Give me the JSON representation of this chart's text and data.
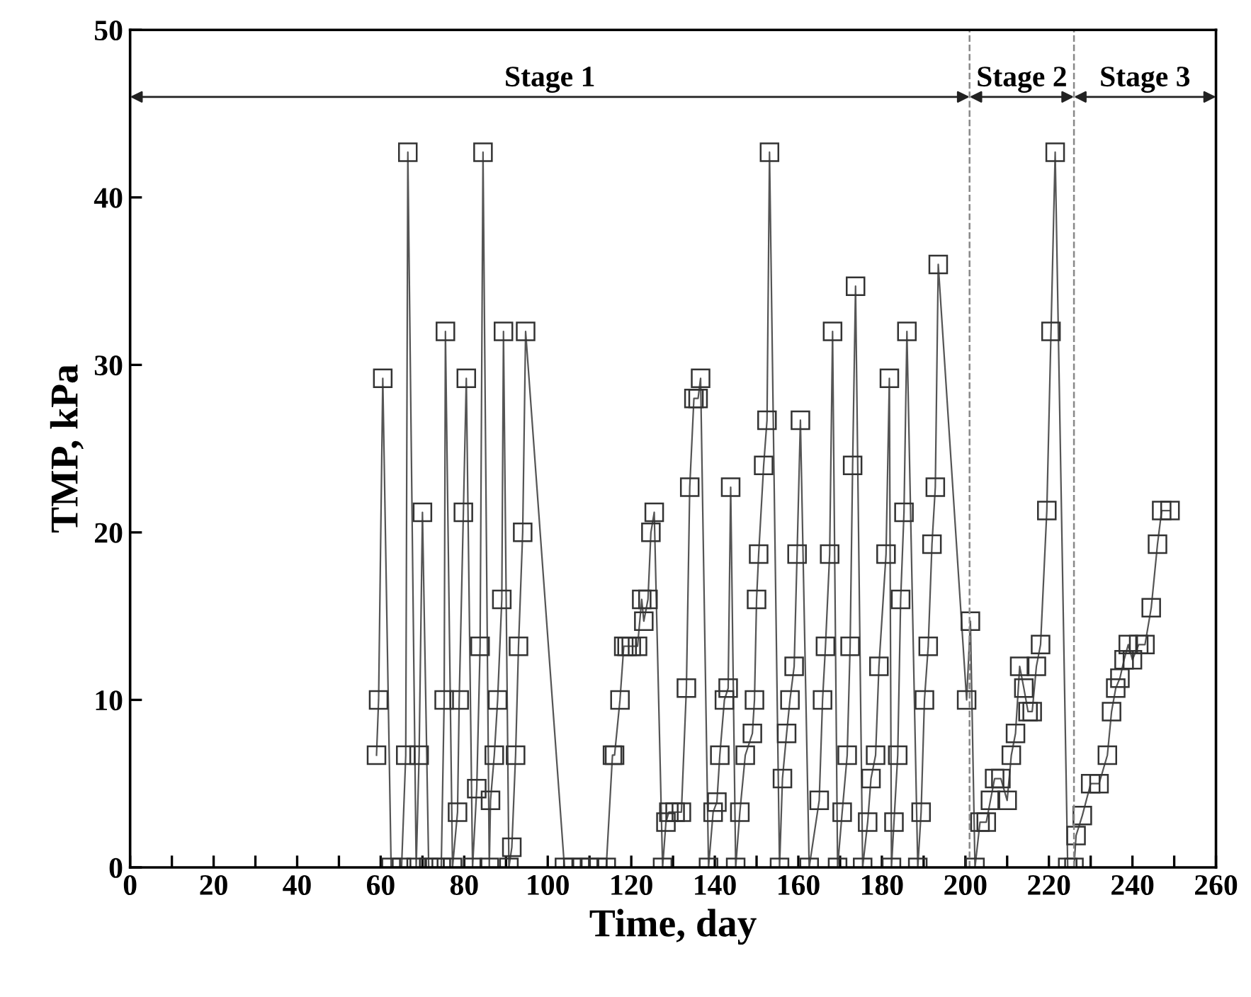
{
  "chart_data": {
    "type": "line",
    "xlabel": "Time, day",
    "ylabel": "TMP, kPa",
    "series": [
      {
        "color": "#555555",
        "marker": "square",
        "x": [
          59,
          59.5,
          60.5,
          62.5,
          65,
          66,
          66.5,
          68.5,
          69.2,
          70,
          71.5,
          73,
          74.5,
          75.2,
          75.5,
          77.2,
          78.4,
          78.8,
          79.8,
          80.5,
          82,
          83,
          83.8,
          84.5,
          86,
          86.3,
          87.2,
          88,
          89,
          89.4,
          90.7,
          91.4,
          92.3,
          93,
          94,
          94.7,
          104,
          106,
          108,
          110,
          112,
          114,
          115.5,
          116,
          117.3,
          118.2,
          119,
          120,
          121.5,
          122.5,
          123,
          124,
          124.7,
          125.5,
          127.5,
          128.3,
          129,
          130.5,
          132,
          133.2,
          134,
          135,
          136,
          136.6,
          138.5,
          139.6,
          140.5,
          141.2,
          142.3,
          143.2,
          143.8,
          145,
          146,
          147.3,
          149,
          149.5,
          150,
          150.5,
          151.7,
          152.5,
          153.1,
          155.5,
          156.2,
          157.2,
          158,
          159,
          159.7,
          160.5,
          162.6,
          165,
          165.8,
          166.5,
          167.5,
          168.2,
          169.4,
          170.5,
          171.7,
          172.4,
          173,
          173.7,
          175.4,
          176.6,
          177.4,
          178.5,
          179.3,
          181,
          181.8,
          182.3,
          182.9,
          183.8,
          184.5,
          185.3,
          186,
          188.6,
          189.4,
          190.2,
          191.1,
          192,
          192.8,
          193.5,
          200.3,
          201.2,
          202.3,
          203.5,
          205,
          206,
          207,
          208.5,
          210,
          211,
          212,
          213,
          214,
          215,
          216,
          217,
          218,
          219.5,
          220.5,
          221.5,
          224.5,
          226,
          226.5,
          228,
          230,
          232,
          234,
          235,
          236,
          237,
          238,
          239,
          240,
          241.5,
          243,
          244.5,
          246,
          247,
          249
        ],
        "values": [
          6.7,
          10,
          29.2,
          0,
          0,
          6.7,
          42.7,
          0,
          6.7,
          21.2,
          0,
          0,
          0,
          10,
          32,
          0,
          3.3,
          10,
          21.2,
          29.2,
          0,
          4.7,
          13.2,
          42.7,
          0,
          4,
          6.7,
          10,
          16,
          32,
          0,
          1.2,
          6.7,
          13.2,
          20,
          32,
          0,
          0,
          0,
          0,
          0,
          0,
          6.7,
          6.7,
          10,
          13.2,
          13.2,
          13.2,
          13.2,
          16,
          14.7,
          16,
          20,
          21.2,
          0,
          2.7,
          3.3,
          3.3,
          3.3,
          10.7,
          22.7,
          28,
          28,
          29.2,
          0,
          3.3,
          3.9,
          6.7,
          10,
          10.7,
          22.7,
          0,
          3.3,
          6.7,
          8,
          10,
          16,
          18.7,
          24,
          26.7,
          42.7,
          0,
          5.3,
          8,
          10,
          12,
          18.7,
          26.7,
          0,
          4,
          10,
          13.2,
          18.7,
          32,
          0,
          3.3,
          6.7,
          13.2,
          24,
          34.7,
          0,
          2.7,
          5.3,
          6.7,
          12,
          18.7,
          29.2,
          0,
          2.7,
          6.7,
          16,
          21.2,
          32,
          0,
          3.3,
          10,
          13.2,
          19.3,
          22.7,
          36,
          10,
          14.7,
          0,
          2.7,
          2.7,
          4,
          5.3,
          5.3,
          4,
          6.7,
          8,
          12,
          10.7,
          9.3,
          9.3,
          12,
          13.3,
          21.3,
          32,
          42.7,
          0,
          0,
          1.9,
          3.1,
          5,
          5,
          6.7,
          9.3,
          10.7,
          11.3,
          12.4,
          13.3,
          12.4,
          13.3,
          13.3,
          15.5,
          19.3,
          21.3,
          21.3
        ]
      }
    ],
    "xlim": [
      0,
      260
    ],
    "ylim": [
      0,
      50
    ],
    "xticks": [
      0,
      {
        "value": 10,
        "label": null
      },
      20,
      {
        "value": 30,
        "label": null
      },
      40,
      {
        "value": 50,
        "label": null
      },
      60,
      {
        "value": 70,
        "label": null
      },
      80,
      {
        "value": 90,
        "label": null
      },
      100,
      {
        "value": 110,
        "label": null
      },
      120,
      {
        "value": 130,
        "label": null
      },
      140,
      {
        "value": 150,
        "label": null
      },
      160,
      {
        "value": 170,
        "label": null
      },
      180,
      {
        "value": 190,
        "label": null
      },
      200,
      {
        "value": 210,
        "label": null
      },
      220,
      {
        "value": 230,
        "label": null
      },
      240,
      {
        "value": 250,
        "label": null
      },
      260
    ],
    "yticks": [
      0,
      10,
      20,
      30,
      40,
      50
    ],
    "ref_lines": [
      {
        "axis": "x",
        "value": 201,
        "line_style": "dashed",
        "color": "#888888"
      },
      {
        "axis": "x",
        "value": 226,
        "line_style": "dashed",
        "color": "#888888"
      }
    ],
    "annotations": [
      "Stage 1",
      "Stage 2",
      "Stage 3"
    ],
    "grid": false,
    "legend": false
  }
}
